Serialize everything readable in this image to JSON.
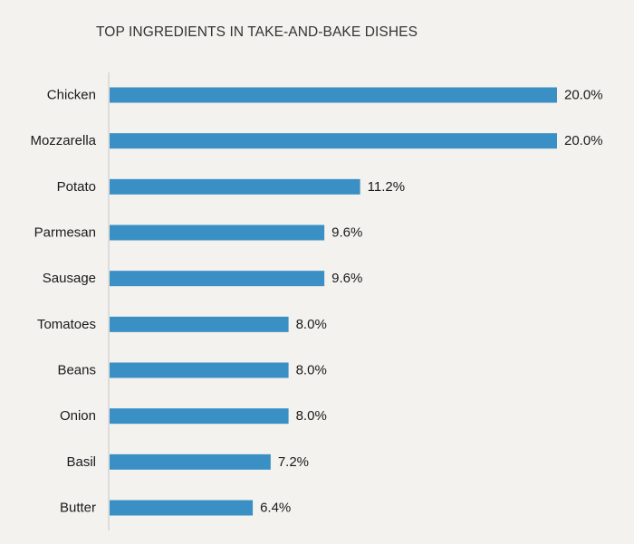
{
  "chart_data": {
    "type": "bar",
    "orientation": "horizontal",
    "title": "TOP INGREDIENTS IN TAKE-AND-BAKE DISHES",
    "categories": [
      "Chicken",
      "Mozzarella",
      "Potato",
      "Parmesan",
      "Sausage",
      "Tomatoes",
      "Beans",
      "Onion",
      "Basil",
      "Butter"
    ],
    "values": [
      20.0,
      20.0,
      11.2,
      9.6,
      9.6,
      8.0,
      8.0,
      8.0,
      7.2,
      6.4
    ],
    "value_labels": [
      "20.0%",
      "20.0%",
      "11.2%",
      "9.6%",
      "9.6%",
      "8.0%",
      "8.0%",
      "8.0%",
      "7.2%",
      "6.4%"
    ],
    "xlim": [
      0,
      20
    ],
    "grid": false,
    "bar_color": "#3a90c4",
    "axis_color": "#c8c8c8"
  }
}
